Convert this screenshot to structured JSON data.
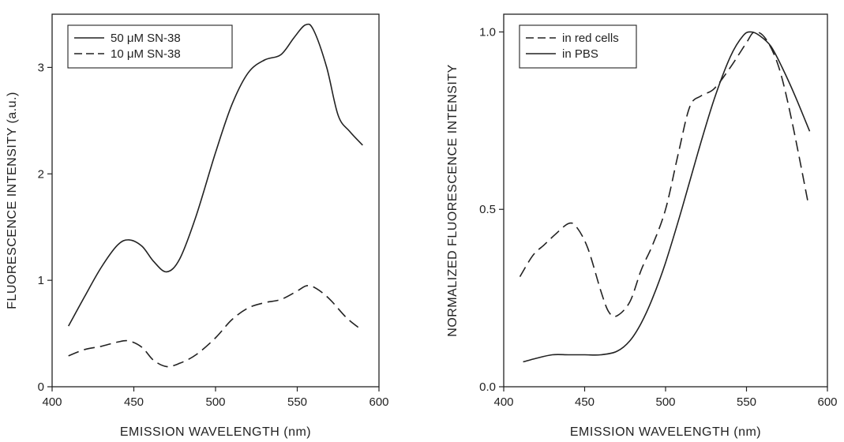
{
  "chart_data": [
    {
      "type": "line",
      "xlabel": "EMISSION  WAVELENGTH  (nm)",
      "ylabel": "FLUORESCENCE  INTENSITY  (a.u.)",
      "xlim": [
        400,
        600
      ],
      "ylim": [
        0,
        3.5
      ],
      "xticks": [
        "400",
        "450",
        "500",
        "550",
        "600"
      ],
      "yticks": [
        "0",
        "1",
        "2",
        "3"
      ],
      "legend_position": "top-left",
      "series": [
        {
          "name": "50 μM SN-38",
          "style": "solid",
          "x": [
            410,
            420,
            430,
            440,
            447,
            455,
            462,
            470,
            478,
            488,
            500,
            510,
            520,
            530,
            540,
            548,
            555,
            560,
            568,
            575,
            582,
            590
          ],
          "y": [
            0.57,
            0.85,
            1.12,
            1.33,
            1.38,
            1.32,
            1.18,
            1.08,
            1.2,
            1.6,
            2.2,
            2.65,
            2.95,
            3.07,
            3.12,
            3.28,
            3.4,
            3.35,
            3.0,
            2.55,
            2.4,
            2.27
          ]
        },
        {
          "name": "10 μM SN-38",
          "style": "dashed",
          "x": [
            410,
            420,
            430,
            440,
            447,
            455,
            462,
            470,
            478,
            488,
            500,
            510,
            520,
            530,
            540,
            550,
            556,
            562,
            570,
            580,
            588
          ],
          "y": [
            0.29,
            0.35,
            0.38,
            0.42,
            0.43,
            0.37,
            0.25,
            0.19,
            0.22,
            0.3,
            0.46,
            0.63,
            0.74,
            0.79,
            0.82,
            0.9,
            0.95,
            0.92,
            0.82,
            0.65,
            0.55
          ]
        }
      ]
    },
    {
      "type": "line",
      "xlabel": "EMISSION  WAVELENGTH (nm)",
      "ylabel": "NORMALIZED  FLUORESCENCE  INTENSITY",
      "xlim": [
        400,
        600
      ],
      "ylim": [
        0,
        1.05
      ],
      "xticks": [
        "400",
        "450",
        "500",
        "550",
        "600"
      ],
      "yticks": [
        "0.0",
        "0.5",
        "1.0"
      ],
      "legend_position": "top-left",
      "series": [
        {
          "name": "in red cells",
          "style": "dashed",
          "x": [
            410,
            418,
            425,
            432,
            440,
            445,
            452,
            460,
            465,
            470,
            478,
            485,
            492,
            500,
            508,
            515,
            522,
            530,
            540,
            550,
            555,
            562,
            570,
            578,
            588
          ],
          "y": [
            0.31,
            0.37,
            0.4,
            0.43,
            0.46,
            0.45,
            0.39,
            0.27,
            0.21,
            0.2,
            0.24,
            0.33,
            0.4,
            0.5,
            0.66,
            0.79,
            0.82,
            0.84,
            0.9,
            0.97,
            1.0,
            0.98,
            0.9,
            0.75,
            0.52
          ]
        },
        {
          "name": "in PBS",
          "style": "solid",
          "x": [
            412,
            420,
            430,
            440,
            450,
            460,
            470,
            478,
            485,
            492,
            500,
            510,
            520,
            530,
            540,
            548,
            553,
            558,
            565,
            572,
            580,
            589
          ],
          "y": [
            0.07,
            0.08,
            0.09,
            0.09,
            0.09,
            0.09,
            0.1,
            0.13,
            0.18,
            0.25,
            0.35,
            0.5,
            0.66,
            0.81,
            0.93,
            0.99,
            1.0,
            0.99,
            0.96,
            0.9,
            0.82,
            0.72
          ]
        }
      ]
    }
  ]
}
